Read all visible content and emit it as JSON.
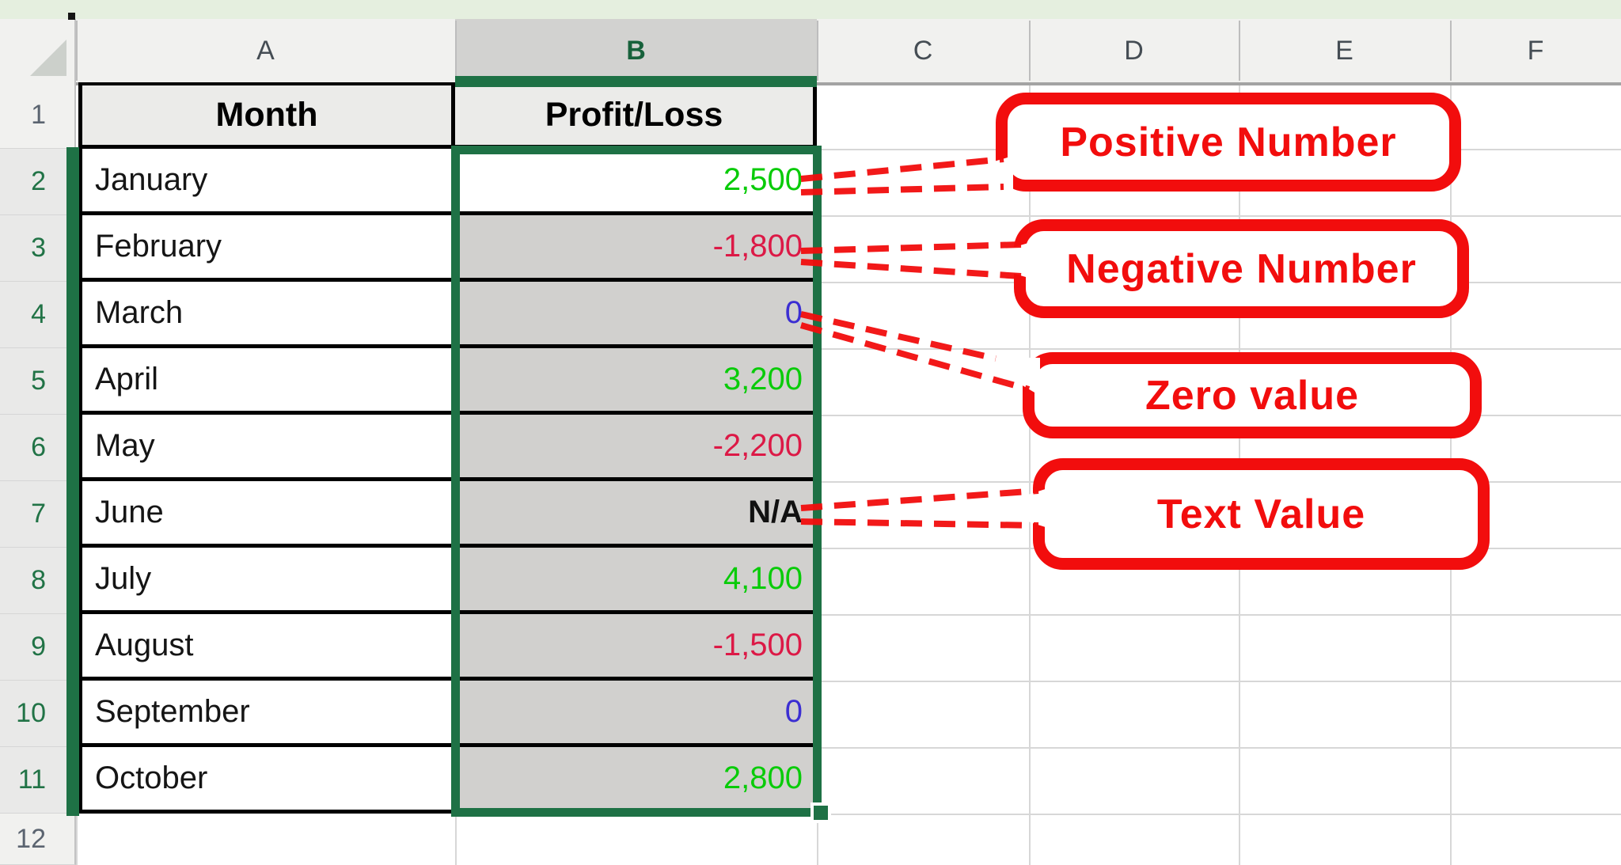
{
  "app": {
    "title": "Excel worksheet with profit/loss formatting callouts"
  },
  "colors": {
    "positive_value": "#09cb09",
    "negative_value": "#dc1946",
    "zero_value": "#3b2ed2",
    "text_value": "#111111",
    "selection_green": "#1E7145",
    "callout_red": "#f20d0d",
    "gray_cell_fill": "#d1d0ce",
    "top_strip_green": "#e5efdf"
  },
  "sheet": {
    "column_headers": [
      {
        "label": "A",
        "selected": false
      },
      {
        "label": "B",
        "selected": true
      },
      {
        "label": "C",
        "selected": false
      },
      {
        "label": "D",
        "selected": false
      },
      {
        "label": "E",
        "selected": false
      },
      {
        "label": "F",
        "selected": false
      }
    ],
    "row_headers": [
      {
        "label": "1",
        "selected": false
      },
      {
        "label": "2",
        "selected": true
      },
      {
        "label": "3",
        "selected": true
      },
      {
        "label": "4",
        "selected": true
      },
      {
        "label": "5",
        "selected": true
      },
      {
        "label": "6",
        "selected": true
      },
      {
        "label": "7",
        "selected": true
      },
      {
        "label": "8",
        "selected": true
      },
      {
        "label": "9",
        "selected": true
      },
      {
        "label": "10",
        "selected": true
      },
      {
        "label": "11",
        "selected": true
      },
      {
        "label": "12",
        "selected": false
      }
    ],
    "table": {
      "header": {
        "month": "Month",
        "value": "Profit/Loss"
      },
      "rows": [
        {
          "row": 2,
          "month": "January",
          "value": "2,500",
          "type": "positive"
        },
        {
          "row": 3,
          "month": "February",
          "value": "-1,800",
          "type": "negative"
        },
        {
          "row": 4,
          "month": "March",
          "value": "0",
          "type": "zero"
        },
        {
          "row": 5,
          "month": "April",
          "value": "3,200",
          "type": "positive"
        },
        {
          "row": 6,
          "month": "May",
          "value": "-2,200",
          "type": "negative"
        },
        {
          "row": 7,
          "month": "June",
          "value": "N/A",
          "type": "text"
        },
        {
          "row": 8,
          "month": "July",
          "value": "4,100",
          "type": "positive"
        },
        {
          "row": 9,
          "month": "August",
          "value": "-1,500",
          "type": "negative"
        },
        {
          "row": 10,
          "month": "September",
          "value": "0",
          "type": "zero"
        },
        {
          "row": 11,
          "month": "October",
          "value": "2,800",
          "type": "positive"
        }
      ]
    }
  },
  "callouts": [
    {
      "id": "positive",
      "label": "Positive Number"
    },
    {
      "id": "negative",
      "label": "Negative Number"
    },
    {
      "id": "zero",
      "label": "Zero value"
    },
    {
      "id": "text",
      "label": "Text Value"
    }
  ]
}
